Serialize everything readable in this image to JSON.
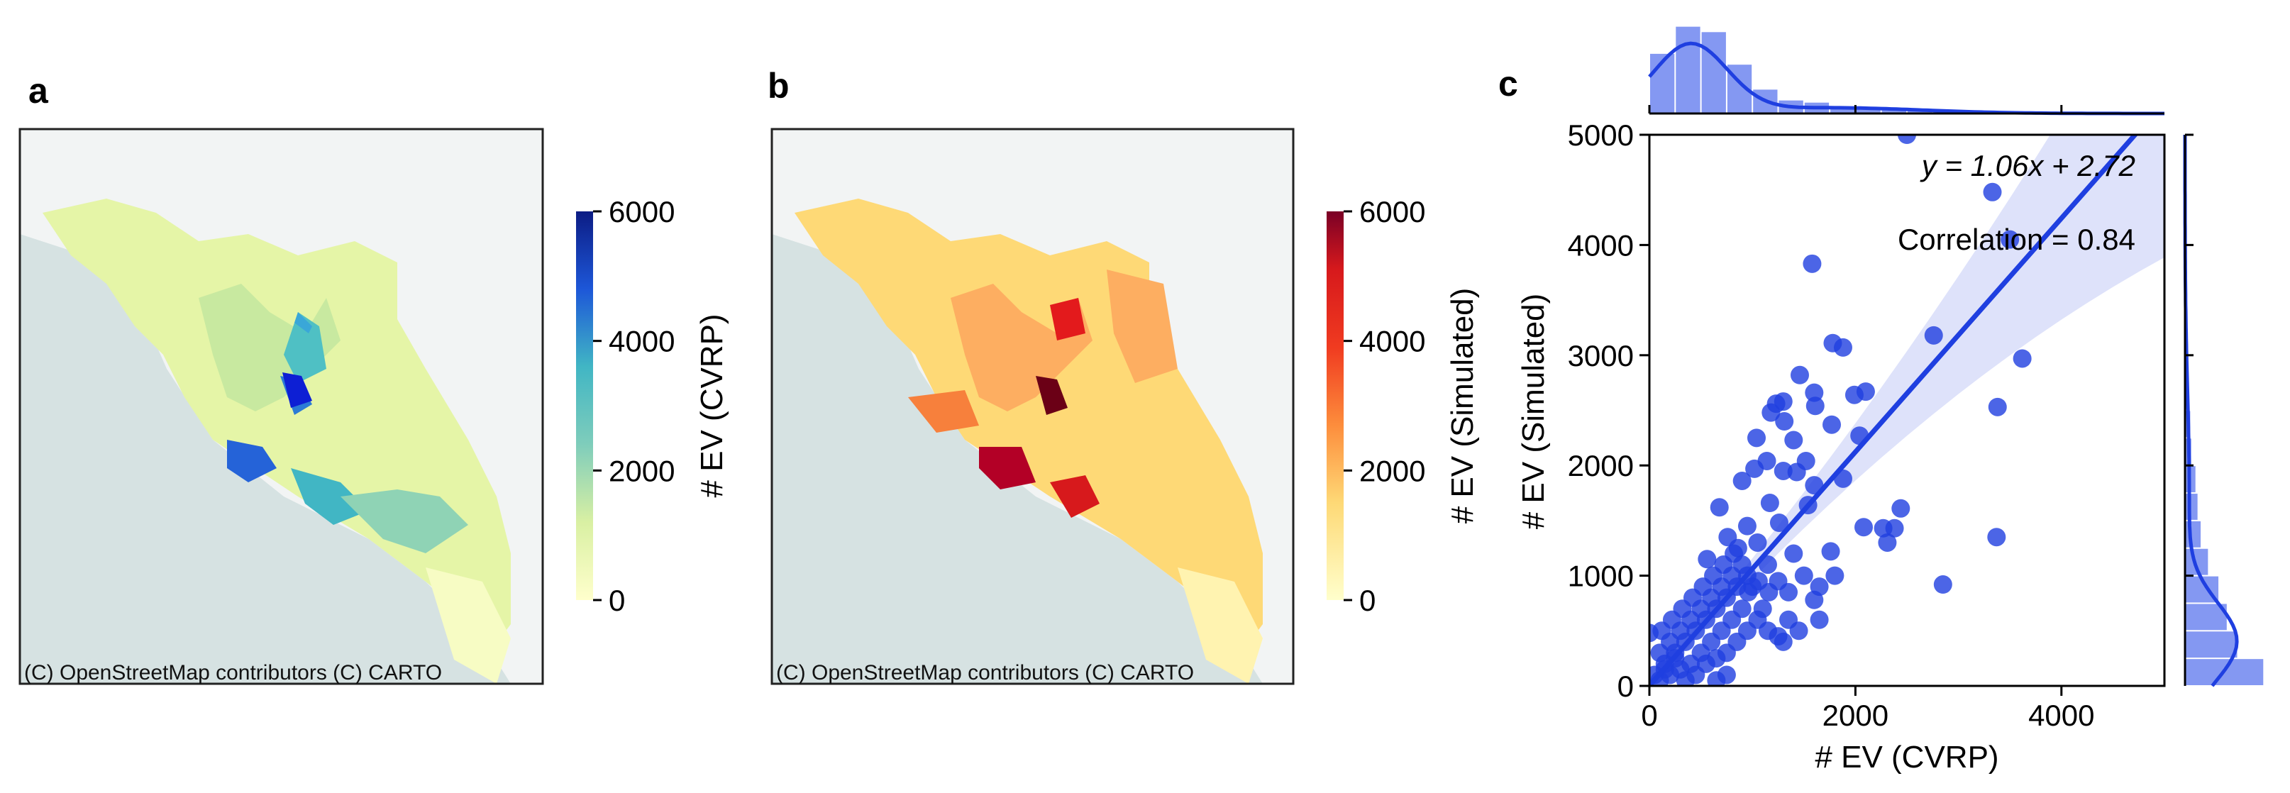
{
  "panels": {
    "a": "a",
    "b": "b",
    "c": "c"
  },
  "map_attribution": "(C) OpenStreetMap contributors (C) CARTO",
  "chart_data": [
    {
      "type": "heatmap",
      "panel": "a",
      "subtype": "choropleth-map",
      "colorbar": {
        "label": "# EV (CVRP)",
        "range": [
          0,
          6000
        ],
        "ticks": [
          "0",
          "2000",
          "4000",
          "6000"
        ],
        "colormap": "YlGnBu"
      },
      "colors": {
        "low": "#ffffcc",
        "mid": "#7fcdbb",
        "high": "#0c2c84"
      }
    },
    {
      "type": "heatmap",
      "panel": "b",
      "subtype": "choropleth-map",
      "colorbar": {
        "label": "# EV (Simulated)",
        "range": [
          0,
          6000
        ],
        "ticks": [
          "0",
          "2000",
          "4000",
          "6000"
        ],
        "colormap": "YlOrRd"
      },
      "colors": {
        "low": "#ffffcc",
        "mid": "#fd8d3c",
        "high": "#800026"
      }
    },
    {
      "type": "scatter",
      "panel": "c",
      "xlabel": "# EV (CVRP)",
      "ylabel": "# EV (Simulated)",
      "xlim": [
        0,
        5000
      ],
      "ylim": [
        0,
        5000
      ],
      "xticks": [
        "0",
        "2000",
        "4000"
      ],
      "yticks": [
        "0",
        "1000",
        "2000",
        "3000",
        "4000",
        "5000"
      ],
      "equation": "y = 1.06x + 2.72",
      "correlation": "Correlation = 0.84",
      "regression": {
        "slope": 1.06,
        "intercept": 2.72
      },
      "color": "#1f3fe0",
      "points": [
        [
          2500,
          5000
        ],
        [
          3330,
          4480
        ],
        [
          3500,
          4050
        ],
        [
          1580,
          3830
        ],
        [
          3620,
          2970
        ],
        [
          3380,
          2530
        ],
        [
          2760,
          3180
        ],
        [
          1780,
          3110
        ],
        [
          1880,
          3070
        ],
        [
          1990,
          2640
        ],
        [
          2100,
          2670
        ],
        [
          1600,
          2660
        ],
        [
          1230,
          2560
        ],
        [
          1180,
          2480
        ],
        [
          1300,
          2580
        ],
        [
          1310,
          2400
        ],
        [
          1610,
          2540
        ],
        [
          1770,
          2370
        ],
        [
          1460,
          2820
        ],
        [
          1040,
          2250
        ],
        [
          1400,
          2230
        ],
        [
          2040,
          2270
        ],
        [
          1520,
          2040
        ],
        [
          1140,
          2040
        ],
        [
          1300,
          1950
        ],
        [
          1430,
          1940
        ],
        [
          1880,
          1880
        ],
        [
          900,
          1860
        ],
        [
          1020,
          1970
        ],
        [
          1600,
          1820
        ],
        [
          1170,
          1660
        ],
        [
          680,
          1620
        ],
        [
          1540,
          1640
        ],
        [
          2440,
          1610
        ],
        [
          1260,
          1480
        ],
        [
          2080,
          1440
        ],
        [
          2270,
          1430
        ],
        [
          2380,
          1430
        ],
        [
          2310,
          1300
        ],
        [
          1760,
          1220
        ],
        [
          3370,
          1350
        ],
        [
          2850,
          920
        ],
        [
          1400,
          1200
        ],
        [
          1500,
          1000
        ],
        [
          1650,
          900
        ],
        [
          1800,
          1000
        ],
        [
          1600,
          780
        ],
        [
          1350,
          850
        ],
        [
          1250,
          950
        ],
        [
          1150,
          1100
        ],
        [
          1050,
          1300
        ],
        [
          950,
          1450
        ],
        [
          1450,
          500
        ],
        [
          1300,
          400
        ],
        [
          1650,
          600
        ],
        [
          1100,
          700
        ],
        [
          900,
          1100
        ],
        [
          800,
          1000
        ],
        [
          700,
          900
        ],
        [
          600,
          800
        ],
        [
          500,
          700
        ],
        [
          400,
          600
        ],
        [
          300,
          500
        ],
        [
          200,
          400
        ],
        [
          100,
          300
        ],
        [
          0,
          480
        ],
        [
          50,
          100
        ],
        [
          150,
          200
        ],
        [
          250,
          300
        ],
        [
          350,
          400
        ],
        [
          450,
          500
        ],
        [
          550,
          600
        ],
        [
          650,
          700
        ],
        [
          750,
          800
        ],
        [
          850,
          900
        ],
        [
          950,
          1000
        ],
        [
          1000,
          900
        ],
        [
          900,
          700
        ],
        [
          800,
          600
        ],
        [
          700,
          500
        ],
        [
          600,
          400
        ],
        [
          500,
          300
        ],
        [
          400,
          200
        ],
        [
          300,
          150
        ],
        [
          200,
          100
        ],
        [
          100,
          50
        ],
        [
          620,
          1000
        ],
        [
          720,
          1100
        ],
        [
          820,
          1200
        ],
        [
          520,
          900
        ],
        [
          420,
          800
        ],
        [
          320,
          700
        ],
        [
          220,
          600
        ],
        [
          120,
          500
        ],
        [
          560,
          1150
        ],
        [
          760,
          1350
        ],
        [
          860,
          1250
        ],
        [
          960,
          850
        ],
        [
          1060,
          950
        ],
        [
          1160,
          850
        ],
        [
          650,
          250
        ],
        [
          750,
          300
        ],
        [
          850,
          400
        ],
        [
          950,
          500
        ],
        [
          1050,
          600
        ],
        [
          1150,
          500
        ],
        [
          1250,
          450
        ],
        [
          1350,
          600
        ],
        [
          550,
          200
        ],
        [
          450,
          100
        ],
        [
          350,
          50
        ],
        [
          250,
          250
        ],
        [
          150,
          150
        ],
        [
          650,
          50
        ],
        [
          750,
          100
        ]
      ],
      "x_histogram": [
        0.55,
        0.8,
        0.75,
        0.45,
        0.22,
        0.12,
        0.1,
        0.06,
        0.04,
        0.03,
        0.03,
        0.02,
        0.02,
        0.01,
        0.02,
        0.01,
        0.01,
        0.01,
        0.01,
        0.01
      ],
      "y_histogram": [
        0.75,
        0.5,
        0.4,
        0.32,
        0.22,
        0.15,
        0.12,
        0.1,
        0.06,
        0.05,
        0.03,
        0.02,
        0.02,
        0.01,
        0.01,
        0.01,
        0.01,
        0.01,
        0.01,
        0.01
      ]
    }
  ]
}
